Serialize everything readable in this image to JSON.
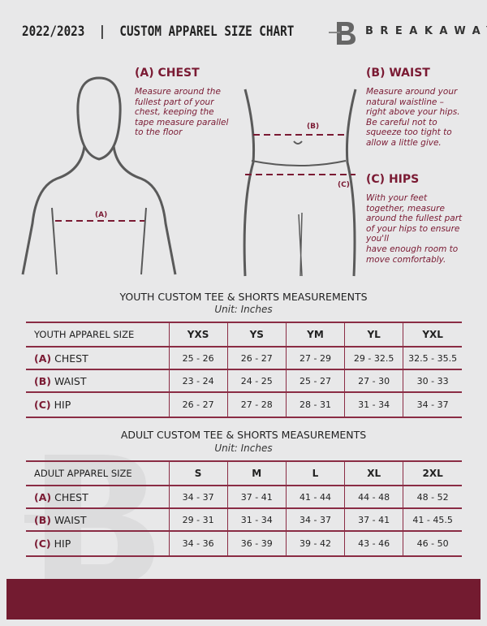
{
  "header": {
    "title": "2022/2023  |  CUSTOM APPAREL SIZE CHART",
    "brand": "BREAKAWAY",
    "logo_letter": "B"
  },
  "colors": {
    "accent": "#7a1a33",
    "footer": "#731b30",
    "background": "#e8e8e9"
  },
  "measures": {
    "chest": {
      "heading": "(A) CHEST",
      "text": "Measure around the\nfullest part of your\nchest, keeping the\ntape measure parallel\nto the floor",
      "marker": "(A)"
    },
    "waist": {
      "heading": "(B) WAIST",
      "text": "Measure around your\nnatural waistline –\nright above your hips.\nBe careful not to\nsqueeze too tight to\nallow a little give.",
      "marker": "(B)"
    },
    "hips": {
      "heading": "(C) HIPS",
      "text": "With your feet\ntogether, measure\naround the fullest part\nof your hips to ensure\nyou'll\nhave enough room to\nmove comfortably.",
      "marker": "(C)"
    }
  },
  "youth": {
    "title": "YOUTH CUSTOM TEE & SHORTS MEASUREMENTS",
    "unit": "Unit: Inches",
    "header": [
      "YOUTH APPAREL SIZE",
      "YXS",
      "YS",
      "YM",
      "YL",
      "YXL"
    ],
    "rows": [
      {
        "tag": "(A)",
        "label": "CHEST",
        "values": [
          "25 - 26",
          "26 - 27",
          "27 - 29",
          "29 - 32.5",
          "32.5 - 35.5"
        ]
      },
      {
        "tag": "(B)",
        "label": "WAIST",
        "values": [
          "23 - 24",
          "24 - 25",
          "25 - 27",
          "27 - 30",
          "30 - 33"
        ]
      },
      {
        "tag": "(C)",
        "label": "HIP",
        "values": [
          "26 - 27",
          "27 - 28",
          "28 - 31",
          "31 - 34",
          "34 - 37"
        ]
      }
    ]
  },
  "adult": {
    "title": "ADULT CUSTOM TEE & SHORTS MEASUREMENTS",
    "unit": "Unit: Inches",
    "header": [
      "ADULT APPAREL SIZE",
      "S",
      "M",
      "L",
      "XL",
      "2XL"
    ],
    "rows": [
      {
        "tag": "(A)",
        "label": "CHEST",
        "values": [
          "34 - 37",
          "37 - 41",
          "41 - 44",
          "44 - 48",
          "48 - 52"
        ]
      },
      {
        "tag": "(B)",
        "label": "WAIST",
        "values": [
          "29 - 31",
          "31 - 34",
          "34 - 37",
          "37 - 41",
          "41 - 45.5"
        ]
      },
      {
        "tag": "(C)",
        "label": "HIP",
        "values": [
          "34 - 36",
          "36 - 39",
          "39 - 42",
          "43 - 46",
          "46 - 50"
        ]
      }
    ]
  }
}
